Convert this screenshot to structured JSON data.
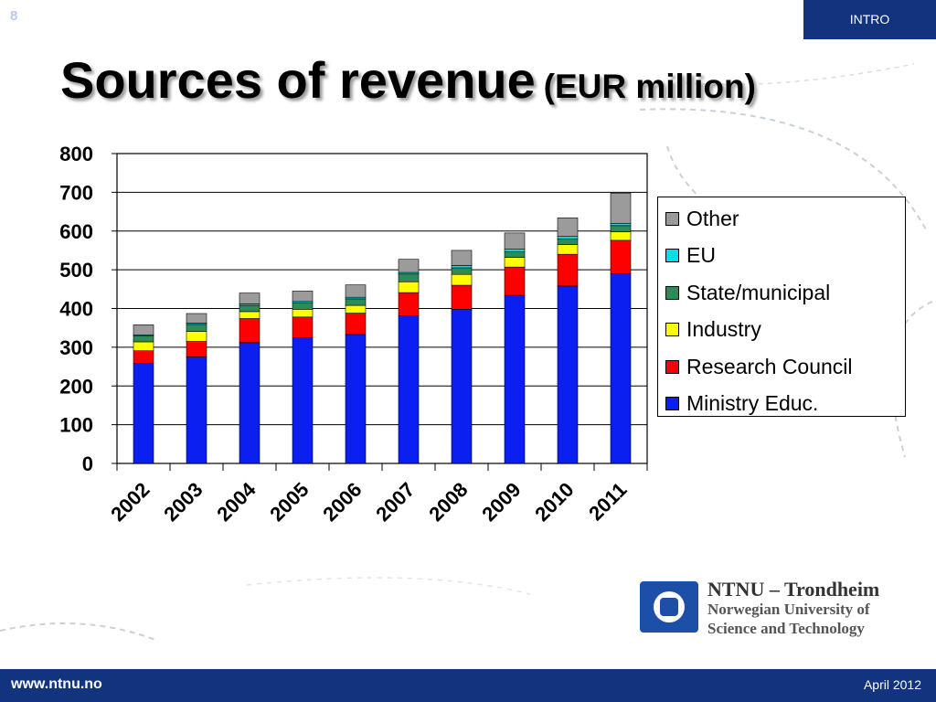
{
  "slide_number": "8",
  "section_tag": "INTRO",
  "title": "Sources of revenue",
  "title_unit": "(EUR million)",
  "footer": {
    "url": "www.ntnu.no",
    "date": "April 2012"
  },
  "logo": {
    "line1": "NTNU – Trondheim",
    "line2": "Norwegian University of",
    "line3": "Science and Technology",
    "colors": {
      "mark": "#1d4ea8"
    }
  },
  "chart_data": {
    "type": "bar",
    "stacked": true,
    "categories": [
      "2002",
      "2003",
      "2004",
      "2005",
      "2006",
      "2007",
      "2008",
      "2009",
      "2010",
      "2011"
    ],
    "ylim": [
      0,
      800
    ],
    "yticks": [
      "0",
      "100",
      "200",
      "300",
      "400",
      "500",
      "600",
      "700",
      "800"
    ],
    "grid": true,
    "legend_position": "right",
    "series": [
      {
        "name": "Ministry Educ.",
        "color": "#0a1ff0",
        "values": [
          258,
          275,
          312,
          325,
          333,
          381,
          398,
          434,
          458,
          490
        ]
      },
      {
        "name": "Research Council",
        "color": "#ff0000",
        "values": [
          33,
          40,
          62,
          53,
          55,
          60,
          62,
          73,
          82,
          86
        ]
      },
      {
        "name": "Industry",
        "color": "#ffff00",
        "values": [
          23,
          26,
          18,
          20,
          20,
          28,
          28,
          25,
          25,
          22
        ]
      },
      {
        "name": "State/municipal",
        "color": "#2e8b57",
        "values": [
          15,
          18,
          16,
          16,
          17,
          20,
          17,
          15,
          15,
          16
        ]
      },
      {
        "name": "EU",
        "color": "#00e0e0",
        "values": [
          3,
          3,
          4,
          4,
          4,
          4,
          6,
          6,
          6,
          6
        ]
      },
      {
        "name": "Other",
        "color": "#9b9b9b",
        "values": [
          26,
          25,
          28,
          27,
          32,
          34,
          39,
          42,
          48,
          78
        ]
      }
    ]
  }
}
